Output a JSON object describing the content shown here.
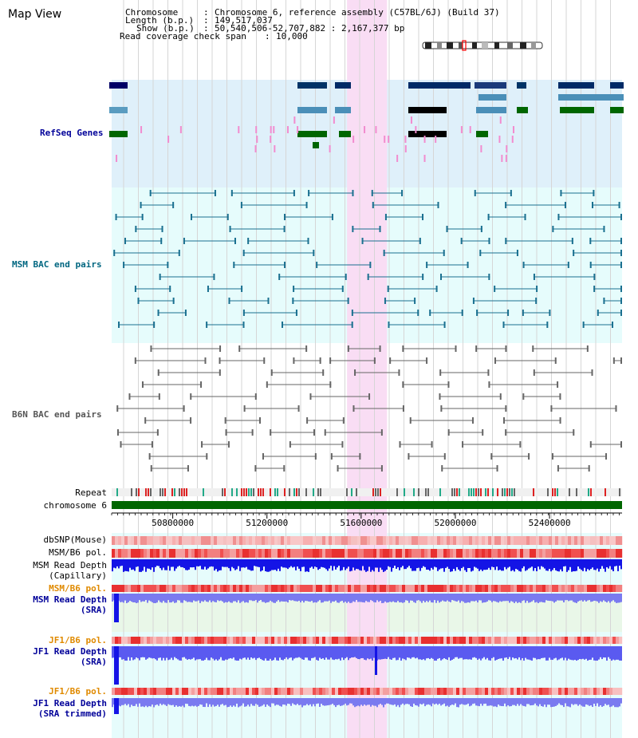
{
  "page": {
    "title": "Map View"
  },
  "header": {
    "chromosome_key": "Chromosome",
    "chromosome_value": "Chromosome 6, reference assembly (C57BL/6J) (Build 37)",
    "length_key": "Length (b.p.)",
    "length_value": "149,517,037",
    "show_key": "Show (b.p.)",
    "show_value": "50,540,506-52,707,882 : 2,167,377 bp",
    "span_key": "Read coverage check span",
    "span_value": "10,000"
  },
  "view": {
    "start_bp": 50540506,
    "end_bp": 52707882,
    "highlight_start_bp": 51540000,
    "highlight_end_bp": 51710000
  },
  "axis": {
    "ticks": [
      "50800000",
      "51200000",
      "51600000",
      "52000000",
      "52400000"
    ],
    "tick_values": [
      50800000,
      51200000,
      51600000,
      52000000,
      52400000
    ]
  },
  "tracks": {
    "refseq": {
      "label": "RefSeq Genes",
      "color": "#000099"
    },
    "msm_bac": {
      "label": "MSM BAC end pairs",
      "color": "#006680"
    },
    "b6n_bac": {
      "label": "B6N BAC end pairs",
      "color": "#555555"
    },
    "repeat": {
      "label": "Repeat"
    },
    "chromosome": {
      "label": "chromosome 6"
    },
    "dbsnp": {
      "label": "dbSNP(Mouse)"
    },
    "msm_b6_pol": {
      "label": "MSM/B6 pol."
    },
    "msm_depth_cap": {
      "label": "MSM Read Depth",
      "sub": "(Capillary)"
    },
    "msm_b6_pol2": {
      "label": "MSM/B6 pol."
    },
    "msm_depth_sra": {
      "label": "MSM Read Depth",
      "sub": "(SRA)"
    },
    "jf1_b6_pol": {
      "label": "JF1/B6 pol."
    },
    "jf1_depth_sra": {
      "label": "JF1 Read Depth",
      "sub": "(SRA)"
    },
    "jf1_b6_pol2": {
      "label": "JF1/B6 pol."
    },
    "jf1_depth_trim": {
      "label": "JF1 Read Depth",
      "sub": "(SRA trimmed)"
    }
  },
  "colors": {
    "refseq_bg": "#dff0fa",
    "msm_bg": "#e6fcfc",
    "highlight": "#f9ddf4",
    "chromosome": "#006600",
    "depth": "#1414e6",
    "depth_light": "#7a7af0",
    "pol": "#f04040",
    "snp": "#f7a0a0"
  }
}
